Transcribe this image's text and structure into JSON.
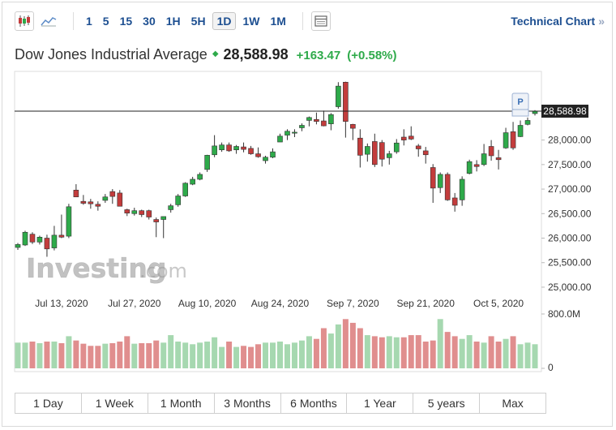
{
  "toolbar": {
    "icons": [
      "candlestick-chart-icon",
      "line-chart-icon"
    ],
    "timeframes": [
      "1",
      "5",
      "15",
      "30",
      "1H",
      "5H",
      "1D",
      "1W",
      "1M"
    ],
    "active_timeframe": "1D",
    "table_icon": "table-icon",
    "technical_chart_label": "Technical Chart",
    "technical_chart_chevron": "»"
  },
  "header": {
    "instrument": "Dow Jones Industrial Average",
    "price": "28,588.98",
    "change": "+163.47",
    "change_pct": "(+0.58%)"
  },
  "watermark": {
    "brand": "Investing",
    "suffix": ".com"
  },
  "range_buttons": [
    "1 Day",
    "1 Week",
    "1 Month",
    "3 Months",
    "6 Months",
    "1 Year",
    "5 years",
    "Max"
  ],
  "colors": {
    "up": "#2eaa4a",
    "down": "#c33c3c",
    "vol_up": "#a6d8b0",
    "vol_down": "#e08e8e",
    "accent": "#1d4f91"
  },
  "chart_data": {
    "type": "candlestick",
    "price_axis": {
      "ticks": [
        "25,000.00",
        "25,500.00",
        "26,000.00",
        "26,500.00",
        "27,000.00",
        "27,500.00",
        "28,000.00"
      ],
      "ylim": [
        24900,
        29400
      ]
    },
    "date_labels": [
      "Jul 13, 2020",
      "Jul 27, 2020",
      "Aug 10, 2020",
      "Aug 24, 2020",
      "Sep 7, 2020",
      "Sep 21, 2020",
      "Oct 5, 2020"
    ],
    "last_price_label": "28,588.98",
    "last_price": 28588.98,
    "marker_label": "P",
    "volume_axis": {
      "ticks": [
        "800.0M",
        "0"
      ]
    },
    "candles": [
      {
        "o": 25810,
        "h": 25900,
        "l": 25760,
        "c": 25870
      },
      {
        "o": 25860,
        "h": 26150,
        "l": 25840,
        "c": 26120
      },
      {
        "o": 26080,
        "h": 26120,
        "l": 25880,
        "c": 25920
      },
      {
        "o": 25920,
        "h": 26050,
        "l": 25870,
        "c": 26020
      },
      {
        "o": 26000,
        "h": 26070,
        "l": 25620,
        "c": 25780
      },
      {
        "o": 25800,
        "h": 26250,
        "l": 25750,
        "c": 26060
      },
      {
        "o": 26060,
        "h": 26480,
        "l": 26000,
        "c": 26020
      },
      {
        "o": 26040,
        "h": 26700,
        "l": 26000,
        "c": 26640
      },
      {
        "o": 26980,
        "h": 27100,
        "l": 26850,
        "c": 26840
      },
      {
        "o": 26750,
        "h": 26880,
        "l": 26680,
        "c": 26710
      },
      {
        "o": 26740,
        "h": 26800,
        "l": 26600,
        "c": 26700
      },
      {
        "o": 26690,
        "h": 26750,
        "l": 26560,
        "c": 26650
      },
      {
        "o": 26770,
        "h": 26900,
        "l": 26720,
        "c": 26840
      },
      {
        "o": 26950,
        "h": 27000,
        "l": 26700,
        "c": 26850
      },
      {
        "o": 26920,
        "h": 26980,
        "l": 26650,
        "c": 26650
      },
      {
        "o": 26580,
        "h": 26600,
        "l": 26450,
        "c": 26510
      },
      {
        "o": 26500,
        "h": 26620,
        "l": 26460,
        "c": 26560
      },
      {
        "o": 26560,
        "h": 26580,
        "l": 26430,
        "c": 26480
      },
      {
        "o": 26560,
        "h": 26580,
        "l": 26380,
        "c": 26430
      },
      {
        "o": 26380,
        "h": 26420,
        "l": 26020,
        "c": 26330
      },
      {
        "o": 26380,
        "h": 26420,
        "l": 26000,
        "c": 26440
      },
      {
        "o": 26580,
        "h": 26700,
        "l": 26520,
        "c": 26660
      },
      {
        "o": 26680,
        "h": 26900,
        "l": 26640,
        "c": 26860
      },
      {
        "o": 26860,
        "h": 27140,
        "l": 26840,
        "c": 27120
      },
      {
        "o": 27100,
        "h": 27250,
        "l": 27080,
        "c": 27200
      },
      {
        "o": 27200,
        "h": 27340,
        "l": 27180,
        "c": 27300
      },
      {
        "o": 27400,
        "h": 27700,
        "l": 27350,
        "c": 27690
      },
      {
        "o": 27700,
        "h": 28100,
        "l": 27650,
        "c": 27880
      },
      {
        "o": 27800,
        "h": 27950,
        "l": 27760,
        "c": 27900
      },
      {
        "o": 27900,
        "h": 27950,
        "l": 27760,
        "c": 27780
      },
      {
        "o": 27800,
        "h": 27900,
        "l": 27720,
        "c": 27870
      },
      {
        "o": 27860,
        "h": 27950,
        "l": 27750,
        "c": 27810
      },
      {
        "o": 27830,
        "h": 27880,
        "l": 27700,
        "c": 27720
      },
      {
        "o": 27720,
        "h": 27850,
        "l": 27640,
        "c": 27660
      },
      {
        "o": 27580,
        "h": 27680,
        "l": 27520,
        "c": 27650
      },
      {
        "o": 27650,
        "h": 27830,
        "l": 27630,
        "c": 27760
      },
      {
        "o": 27960,
        "h": 28130,
        "l": 27960,
        "c": 28080
      },
      {
        "o": 28100,
        "h": 28220,
        "l": 28000,
        "c": 28180
      },
      {
        "o": 28140,
        "h": 28220,
        "l": 28060,
        "c": 28160
      },
      {
        "o": 28250,
        "h": 28340,
        "l": 28180,
        "c": 28300
      },
      {
        "o": 28400,
        "h": 28480,
        "l": 28280,
        "c": 28460
      },
      {
        "o": 28420,
        "h": 28560,
        "l": 28320,
        "c": 28380
      },
      {
        "o": 28390,
        "h": 28600,
        "l": 28280,
        "c": 28290
      },
      {
        "o": 28330,
        "h": 28550,
        "l": 28200,
        "c": 28520
      },
      {
        "o": 28680,
        "h": 29180,
        "l": 28640,
        "c": 29100
      },
      {
        "o": 29180,
        "h": 29190,
        "l": 28050,
        "c": 28380
      },
      {
        "o": 28320,
        "h": 28330,
        "l": 28000,
        "c": 28240
      },
      {
        "o": 28040,
        "h": 28220,
        "l": 27440,
        "c": 27690
      },
      {
        "o": 27710,
        "h": 27930,
        "l": 27560,
        "c": 27870
      },
      {
        "o": 27970,
        "h": 28130,
        "l": 27450,
        "c": 27500
      },
      {
        "o": 27950,
        "h": 28000,
        "l": 27460,
        "c": 27610
      },
      {
        "o": 27640,
        "h": 27780,
        "l": 27500,
        "c": 27720
      },
      {
        "o": 27760,
        "h": 28020,
        "l": 27720,
        "c": 27940
      },
      {
        "o": 28060,
        "h": 28220,
        "l": 27890,
        "c": 28000
      },
      {
        "o": 28080,
        "h": 28280,
        "l": 28000,
        "c": 28020
      },
      {
        "o": 27880,
        "h": 27920,
        "l": 27660,
        "c": 27820
      },
      {
        "o": 27780,
        "h": 27860,
        "l": 27520,
        "c": 27700
      },
      {
        "o": 27440,
        "h": 27510,
        "l": 26720,
        "c": 27020
      },
      {
        "o": 27030,
        "h": 27340,
        "l": 26920,
        "c": 27300
      },
      {
        "o": 27300,
        "h": 27340,
        "l": 26760,
        "c": 26780
      },
      {
        "o": 26820,
        "h": 26920,
        "l": 26540,
        "c": 26670
      },
      {
        "o": 26780,
        "h": 27260,
        "l": 26660,
        "c": 27200
      },
      {
        "o": 27320,
        "h": 27600,
        "l": 27300,
        "c": 27560
      },
      {
        "o": 27500,
        "h": 27590,
        "l": 27360,
        "c": 27460
      },
      {
        "o": 27500,
        "h": 27920,
        "l": 27470,
        "c": 27720
      },
      {
        "o": 27870,
        "h": 28000,
        "l": 27580,
        "c": 27680
      },
      {
        "o": 27640,
        "h": 27800,
        "l": 27400,
        "c": 27600
      },
      {
        "o": 27840,
        "h": 28250,
        "l": 27820,
        "c": 28150
      },
      {
        "o": 28170,
        "h": 28370,
        "l": 27800,
        "c": 27840
      },
      {
        "o": 28070,
        "h": 28400,
        "l": 28060,
        "c": 28300
      },
      {
        "o": 28320,
        "h": 28460,
        "l": 28300,
        "c": 28400
      },
      {
        "o": 28540,
        "h": 28610,
        "l": 28500,
        "c": 28588.98
      }
    ],
    "volumes": [
      0.48,
      0.48,
      0.5,
      0.47,
      0.5,
      0.5,
      0.47,
      0.6,
      0.52,
      0.46,
      0.42,
      0.42,
      0.46,
      0.47,
      0.5,
      0.6,
      0.46,
      0.47,
      0.47,
      0.52,
      0.48,
      0.62,
      0.5,
      0.48,
      0.45,
      0.48,
      0.5,
      0.58,
      0.4,
      0.5,
      0.4,
      0.42,
      0.4,
      0.45,
      0.48,
      0.48,
      0.5,
      0.45,
      0.48,
      0.52,
      0.6,
      0.55,
      0.75,
      0.65,
      0.82,
      0.92,
      0.85,
      0.75,
      0.62,
      0.6,
      0.58,
      0.6,
      0.58,
      0.58,
      0.62,
      0.62,
      0.5,
      0.52,
      0.92,
      0.68,
      0.6,
      0.55,
      0.62,
      0.5,
      0.48,
      0.6,
      0.5,
      0.55,
      0.6,
      0.45,
      0.48,
      0.45
    ]
  }
}
